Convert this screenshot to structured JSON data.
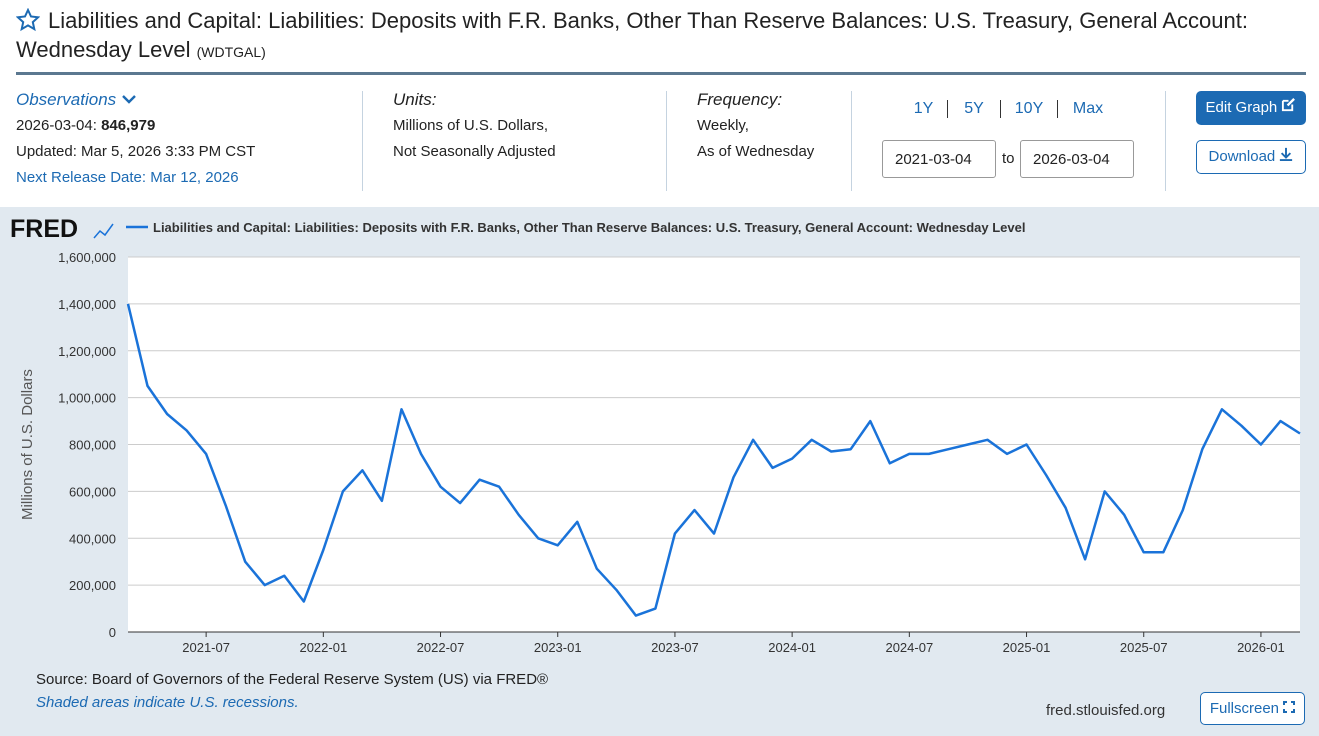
{
  "header": {
    "title": "Liabilities and Capital: Liabilities: Deposits with F.R. Banks, Other Than Reserve Balances: U.S. Treasury, General Account: Wednesday Level",
    "series_id": "(WDTGAL)"
  },
  "observations": {
    "label": "Observations",
    "date": "2026-03-04:",
    "value": "846,979",
    "updated": "Updated: Mar 5, 2026 3:33 PM CST",
    "next_release": "Next Release Date: Mar 12, 2026"
  },
  "units": {
    "label": "Units:",
    "lines": [
      "Millions of U.S. Dollars,",
      "Not Seasonally Adjusted"
    ]
  },
  "frequency": {
    "label": "Frequency:",
    "lines": [
      "Weekly,",
      "As of Wednesday"
    ]
  },
  "range_buttons": [
    "1Y",
    "5Y",
    "10Y",
    "Max"
  ],
  "date_range": {
    "start": "2021-03-04",
    "to": "to",
    "end": "2026-03-04"
  },
  "buttons": {
    "edit": "Edit Graph",
    "download": "Download",
    "fullscreen": "Fullscreen"
  },
  "chart_data": {
    "type": "line",
    "brand": "FRED",
    "y_label": "Millions of U.S. Dollars",
    "grid": true,
    "x": [
      "2021-03",
      "2021-04",
      "2021-05",
      "2021-06",
      "2021-07",
      "2021-08",
      "2021-09",
      "2021-10",
      "2021-11",
      "2021-12",
      "2022-01",
      "2022-02",
      "2022-03",
      "2022-04",
      "2022-05",
      "2022-06",
      "2022-07",
      "2022-08",
      "2022-09",
      "2022-10",
      "2022-11",
      "2022-12",
      "2023-01",
      "2023-02",
      "2023-03",
      "2023-04",
      "2023-05",
      "2023-06",
      "2023-07",
      "2023-08",
      "2023-09",
      "2023-10",
      "2023-11",
      "2023-12",
      "2024-01",
      "2024-02",
      "2024-03",
      "2024-04",
      "2024-05",
      "2024-06",
      "2024-07",
      "2024-08",
      "2024-09",
      "2024-10",
      "2024-11",
      "2024-12",
      "2025-01",
      "2025-02",
      "2025-03",
      "2025-04",
      "2025-05",
      "2025-06",
      "2025-07",
      "2025-08",
      "2025-09",
      "2025-10",
      "2025-11",
      "2025-12",
      "2026-01",
      "2026-02",
      "2026-03"
    ],
    "series": [
      {
        "name": "Liabilities and Capital: Liabilities: Deposits with F.R. Banks, Other Than Reserve Balances: U.S. Treasury, General Account: Wednesday Level",
        "color": "#1a73d9",
        "values": [
          1400000,
          1050000,
          930000,
          860000,
          760000,
          540000,
          300000,
          200000,
          240000,
          130000,
          350000,
          600000,
          690000,
          560000,
          950000,
          760000,
          620000,
          550000,
          650000,
          620000,
          500000,
          400000,
          370000,
          470000,
          270000,
          180000,
          70000,
          100000,
          420000,
          520000,
          420000,
          660000,
          820000,
          700000,
          740000,
          820000,
          770000,
          780000,
          900000,
          720000,
          760000,
          760000,
          780000,
          800000,
          820000,
          760000,
          800000,
          670000,
          530000,
          310000,
          600000,
          500000,
          340000,
          340000,
          520000,
          780000,
          950000,
          880000,
          800000,
          900000,
          846979
        ]
      }
    ],
    "xlim": [
      "2021-03",
      "2026-03"
    ],
    "xticks": [
      "2021-07",
      "2022-01",
      "2022-07",
      "2023-01",
      "2023-07",
      "2024-01",
      "2024-07",
      "2025-01",
      "2025-07",
      "2026-01"
    ],
    "ylim": [
      0,
      1600000
    ],
    "yticks": [
      0,
      {
        "value": 200000,
        "label": "200,000"
      },
      {
        "value": 400000,
        "label": "400,000"
      },
      {
        "value": 600000,
        "label": "600,000"
      },
      {
        "value": 800000,
        "label": "800,000"
      },
      {
        "value": 1000000,
        "label": "1,000,000"
      },
      {
        "value": 1200000,
        "label": "1,200,000"
      },
      {
        "value": 1400000,
        "label": "1,400,000"
      },
      {
        "value": 1600000,
        "label": "1,600,000"
      }
    ]
  },
  "footer": {
    "source": "Source: Board of Governors of the Federal Reserve System (US) via FRED®",
    "note": "Shaded areas indicate U.S. recessions.",
    "site": "fred.stlouisfed.org"
  }
}
